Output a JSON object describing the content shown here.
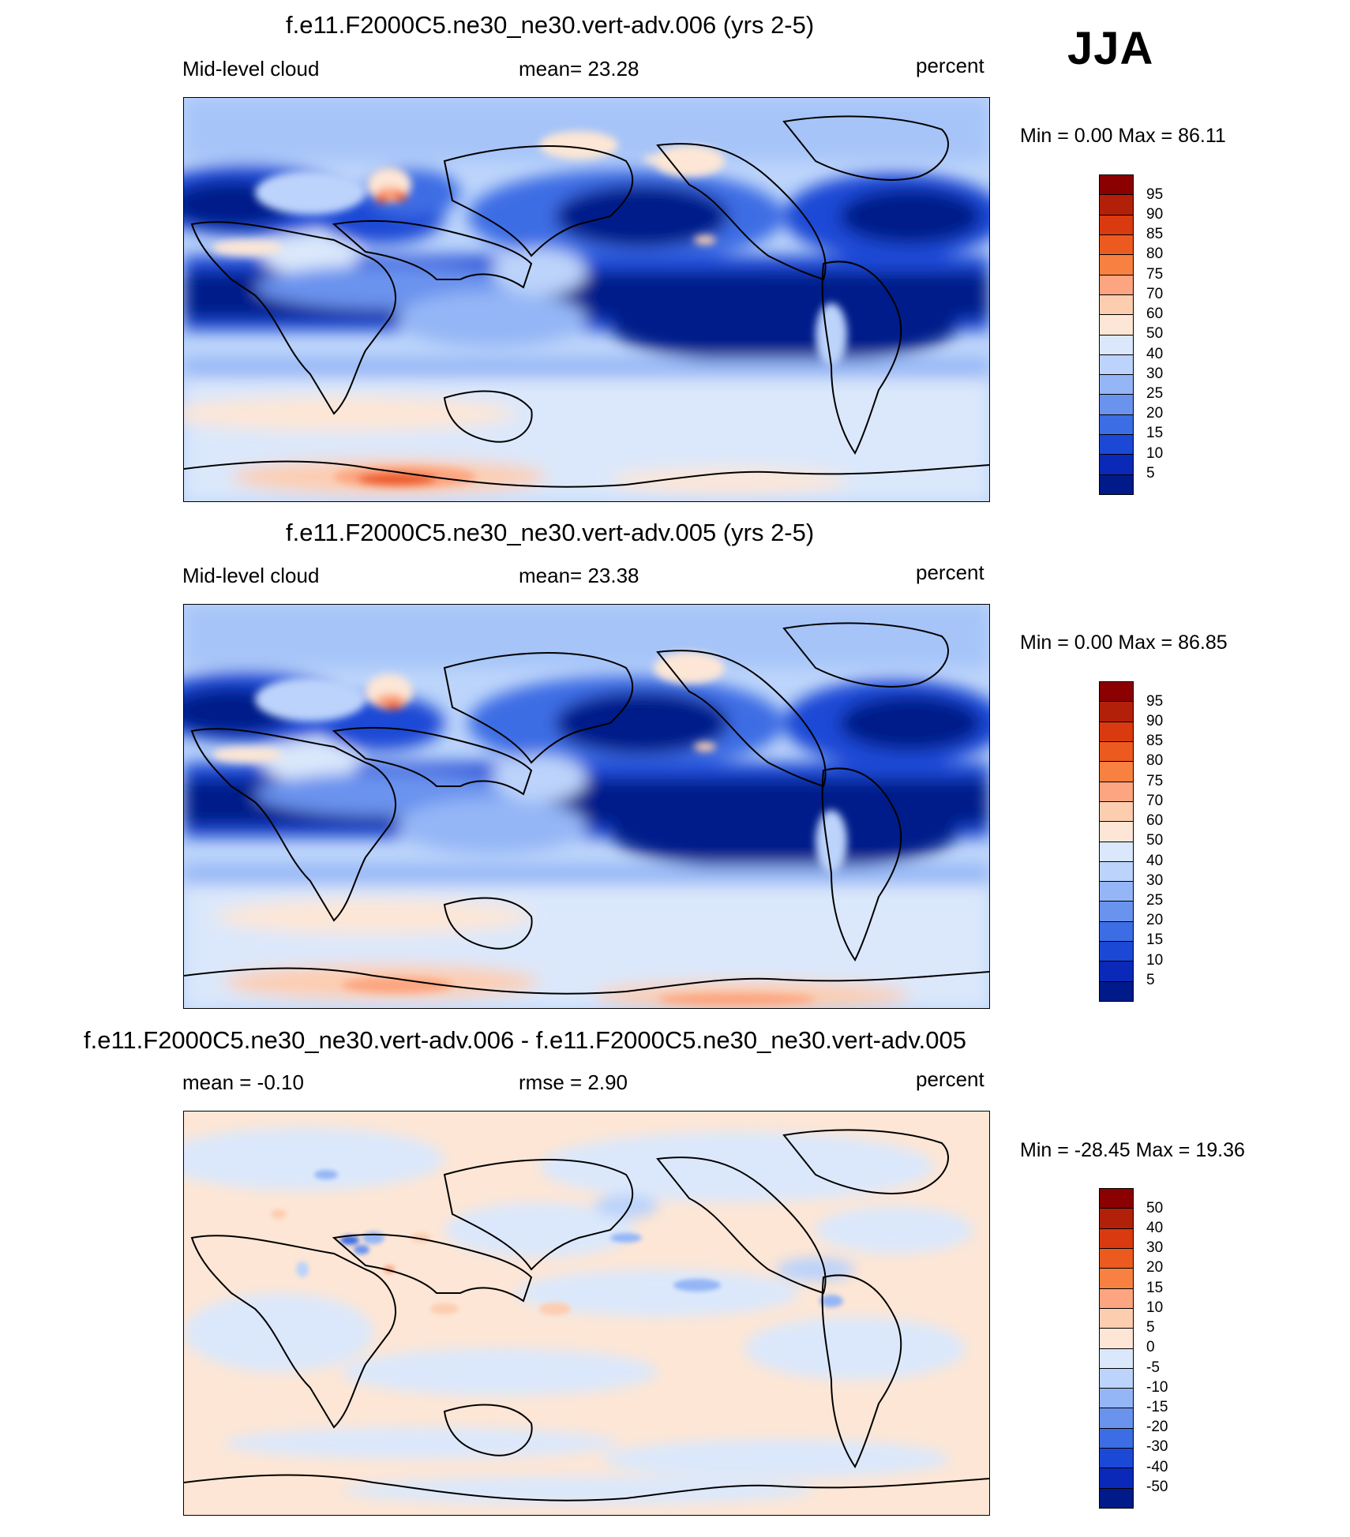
{
  "season": "JJA",
  "panels": [
    {
      "title": "f.e11.F2000C5.ne30_ne30.vert-adv.006 (yrs 2-5)",
      "left_label": "Mid-level cloud",
      "center_label": "mean=  23.28",
      "right_label": "percent",
      "minmax": "Min =   0.00 Max =  86.11"
    },
    {
      "title": "f.e11.F2000C5.ne30_ne30.vert-adv.005 (yrs 2-5)",
      "left_label": "Mid-level cloud",
      "center_label": "mean=  23.38",
      "right_label": "percent",
      "minmax": "Min =   0.00 Max =  86.85"
    },
    {
      "title": "f.e11.F2000C5.ne30_ne30.vert-adv.006 - f.e11.F2000C5.ne30_ne30.vert-adv.005",
      "left_label": "mean =  -0.10",
      "center_label": "rmse =   2.90",
      "right_label": "percent",
      "minmax": "Min = -28.45 Max =  19.36"
    }
  ],
  "colorbars": {
    "absolute": {
      "labels": [
        "95",
        "90",
        "85",
        "80",
        "75",
        "70",
        "60",
        "50",
        "40",
        "30",
        "25",
        "20",
        "15",
        "10",
        "5"
      ],
      "colors": [
        "#8b0000",
        "#b3200a",
        "#d93a10",
        "#ed5a20",
        "#f88040",
        "#fca580",
        "#fdcdb0",
        "#fde6d5",
        "#dbe8fb",
        "#bcd3fb",
        "#94b6f6",
        "#6a93ee",
        "#3d6de4",
        "#1c48d6",
        "#0a29b8",
        "#001a8a"
      ]
    },
    "difference": {
      "labels": [
        "50",
        "40",
        "30",
        "20",
        "15",
        "10",
        "5",
        "0",
        "-5",
        "-10",
        "-15",
        "-20",
        "-30",
        "-40",
        "-50"
      ],
      "colors": [
        "#8b0000",
        "#b3200a",
        "#d93a10",
        "#ed5a20",
        "#f88040",
        "#fca580",
        "#fdcdb0",
        "#fde6d5",
        "#dbe8fb",
        "#bcd3fb",
        "#94b6f6",
        "#6a93ee",
        "#3d6de4",
        "#1c48d6",
        "#0a29b8",
        "#001a8a"
      ]
    }
  }
}
